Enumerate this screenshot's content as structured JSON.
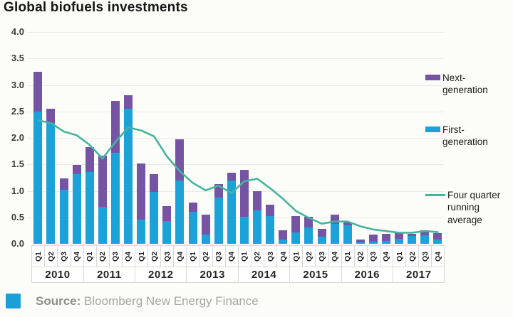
{
  "page": {
    "title": "Global biofuels investments"
  },
  "legend": {
    "items": [
      {
        "label": "Next-generation",
        "color": "#7654a4",
        "type": "square"
      },
      {
        "label": "First-generation",
        "color": "#1ba2d8",
        "type": "square"
      },
      {
        "label": "Four quarter running average",
        "color": "#45b49e",
        "type": "line"
      }
    ]
  },
  "footer": {
    "source_label": "Source:",
    "source_text": "Bloomberg New Energy Finance",
    "brand_color": "#1aa0d8"
  },
  "chart_data": {
    "type": "bar",
    "stacked": true,
    "title": "Global biofuels investments",
    "xlabel": "",
    "ylabel": "",
    "ylim": [
      0,
      4
    ],
    "ytick_step": 0.5,
    "yticks": [
      "4.0",
      "3.5",
      "3.0",
      "2.5",
      "2.0",
      "1.5",
      "1.0",
      "0.5",
      "0.0"
    ],
    "grid": true,
    "legend_position": "right",
    "years": [
      "2010",
      "2011",
      "2012",
      "2013",
      "2014",
      "2015",
      "2016",
      "2017"
    ],
    "quarters": [
      "Q1",
      "Q2",
      "Q3",
      "Q4"
    ],
    "series": [
      {
        "name": "First-generation",
        "type": "bar",
        "color": "#1ba2d8",
        "values": [
          2.5,
          2.28,
          1.02,
          1.32,
          1.35,
          0.7,
          1.72,
          2.55,
          0.45,
          0.98,
          0.43,
          1.2,
          0.61,
          0.18,
          0.87,
          1.2,
          0.51,
          0.63,
          0.52,
          0.08,
          0.21,
          0.31,
          0.13,
          0.38,
          0.35,
          0.03,
          0.04,
          0.06,
          0.1,
          0.15,
          0.16,
          0.08
        ]
      },
      {
        "name": "Next-generation",
        "type": "bar",
        "color": "#7654a4",
        "values": [
          0.75,
          0.27,
          0.22,
          0.17,
          0.47,
          0.97,
          0.98,
          0.26,
          1.07,
          0.34,
          0.28,
          0.77,
          0.17,
          0.37,
          0.26,
          0.14,
          0.88,
          0.36,
          0.22,
          0.17,
          0.32,
          0.2,
          0.15,
          0.17,
          0.05,
          0.05,
          0.14,
          0.13,
          0.1,
          0.04,
          0.09,
          0.12
        ]
      },
      {
        "name": "Four quarter running average",
        "type": "line",
        "color": "#45b49e",
        "values": [
          2.33,
          2.28,
          2.12,
          2.05,
          1.87,
          1.61,
          1.92,
          2.2,
          2.14,
          2.03,
          1.65,
          1.37,
          1.15,
          1.01,
          1.1,
          0.96,
          1.18,
          1.23,
          1.05,
          0.85,
          0.62,
          0.49,
          0.38,
          0.42,
          0.42,
          0.33,
          0.27,
          0.24,
          0.21,
          0.21,
          0.24,
          0.22
        ]
      }
    ]
  }
}
